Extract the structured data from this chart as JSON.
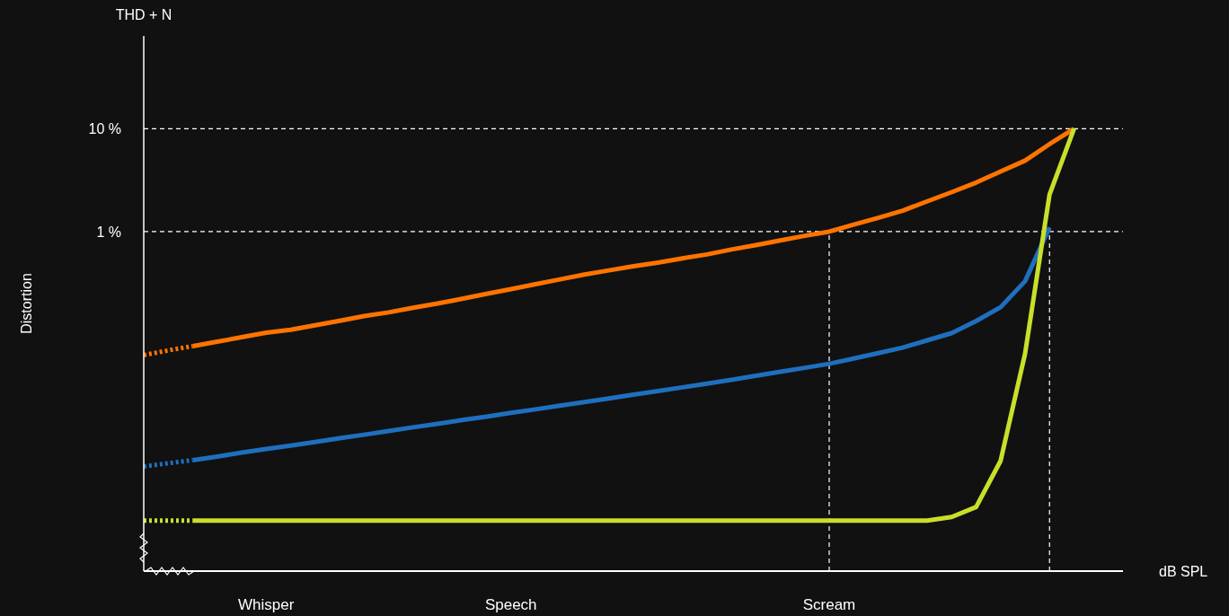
{
  "chart_data": {
    "type": "line",
    "ylabel": "Distortion",
    "xlabel": "dB SPL",
    "annotations": [
      "THD + N"
    ],
    "log": "y",
    "grid": false,
    "categories": [
      null,
      null,
      null,
      null,
      null,
      "Whisper",
      null,
      null,
      null,
      null,
      null,
      null,
      null,
      null,
      null,
      "Speech",
      null,
      null,
      null,
      null,
      null,
      null,
      null,
      null,
      null,
      null,
      null,
      null,
      "Scream",
      null,
      null,
      null,
      null,
      null,
      null,
      null,
      null,
      null,
      null,
      null,
      null
    ],
    "ylim": [
      0.0005,
      80
    ],
    "yticks": [
      {
        "value": 1,
        "label": "1 %"
      },
      {
        "value": 10,
        "label": "10 %"
      }
    ],
    "ref_lines": [
      {
        "axis": "y",
        "value": 10,
        "line_style": "dashed",
        "color": "#ffffff"
      },
      {
        "axis": "y",
        "value": 1,
        "line_style": "dashed",
        "color": "#ffffff"
      },
      {
        "axis": "x",
        "value": "Scream",
        "line_style": "dashed",
        "color": "#ffffff"
      }
    ],
    "series": [
      {
        "color": "#ff7300",
        "line_style": "dotted",
        "values": [
          0.063,
          0.07,
          0.077,
          null,
          null,
          null,
          null,
          null,
          null,
          null,
          null,
          null,
          null,
          null,
          null,
          null,
          null,
          null,
          null,
          null,
          null,
          null,
          null,
          null,
          null,
          null,
          null,
          null,
          null,
          null,
          null,
          null,
          null,
          null,
          null,
          null,
          null,
          null,
          null,
          null,
          null
        ]
      },
      {
        "color": "#ff7300",
        "line_style": "solid",
        "values": [
          null,
          null,
          0.077,
          0.085,
          0.094,
          0.104,
          0.111,
          0.123,
          0.136,
          0.151,
          0.164,
          0.182,
          0.2,
          0.222,
          0.248,
          0.276,
          0.308,
          0.343,
          0.383,
          0.42,
          0.46,
          0.5,
          0.55,
          0.6,
          0.67,
          0.74,
          0.82,
          0.91,
          1.0,
          1.17,
          1.36,
          1.6,
          1.97,
          2.42,
          3.0,
          3.84,
          4.9,
          7.1,
          10,
          null,
          null
        ]
      },
      {
        "color": "#1f6fbf",
        "line_style": "dotted",
        "values": [
          0.0052,
          0.0056,
          0.006,
          null,
          null,
          null,
          null,
          null,
          null,
          null,
          null,
          null,
          null,
          null,
          null,
          null,
          null,
          null,
          null,
          null,
          null,
          null,
          null,
          null,
          null,
          null,
          null,
          null,
          null,
          null,
          null,
          null,
          null,
          null,
          null,
          null,
          null,
          null,
          null,
          null,
          null
        ]
      },
      {
        "color": "#1f6fbf",
        "line_style": "solid",
        "values": [
          null,
          null,
          0.006,
          0.0065,
          0.0071,
          0.0077,
          0.0083,
          0.009,
          0.0098,
          0.0106,
          0.0115,
          0.0125,
          0.0135,
          0.0147,
          0.0159,
          0.0173,
          0.0187,
          0.0203,
          0.022,
          0.0239,
          0.026,
          0.0282,
          0.0306,
          0.0333,
          0.0362,
          0.0396,
          0.0434,
          0.0474,
          0.0519,
          0.0583,
          0.0658,
          0.0745,
          0.0877,
          0.103,
          0.135,
          0.184,
          0.33,
          1.1,
          null,
          null,
          null
        ]
      },
      {
        "color": "#c8e02a",
        "line_style": "dotted",
        "values": [
          0.00155,
          0.00155,
          0.00155,
          null,
          null,
          null,
          null,
          null,
          null,
          null,
          null,
          null,
          null,
          null,
          null,
          null,
          null,
          null,
          null,
          null,
          null,
          null,
          null,
          null,
          null,
          null,
          null,
          null,
          null,
          null,
          null,
          null,
          null,
          null,
          null,
          null,
          null,
          null,
          null,
          null,
          null
        ]
      },
      {
        "color": "#c8e02a",
        "line_style": "solid",
        "values": [
          null,
          null,
          0.00155,
          0.00155,
          0.00155,
          0.00155,
          0.00155,
          0.00155,
          0.00155,
          0.00155,
          0.00155,
          0.00155,
          0.00155,
          0.00155,
          0.00155,
          0.00155,
          0.00155,
          0.00155,
          0.00155,
          0.00155,
          0.00155,
          0.00155,
          0.00155,
          0.00155,
          0.00155,
          0.00155,
          0.00155,
          0.00155,
          0.00155,
          0.00155,
          0.00155,
          0.00155,
          0.00155,
          0.00168,
          0.0021,
          0.0059,
          0.065,
          2.3,
          10,
          null,
          null
        ]
      }
    ]
  }
}
